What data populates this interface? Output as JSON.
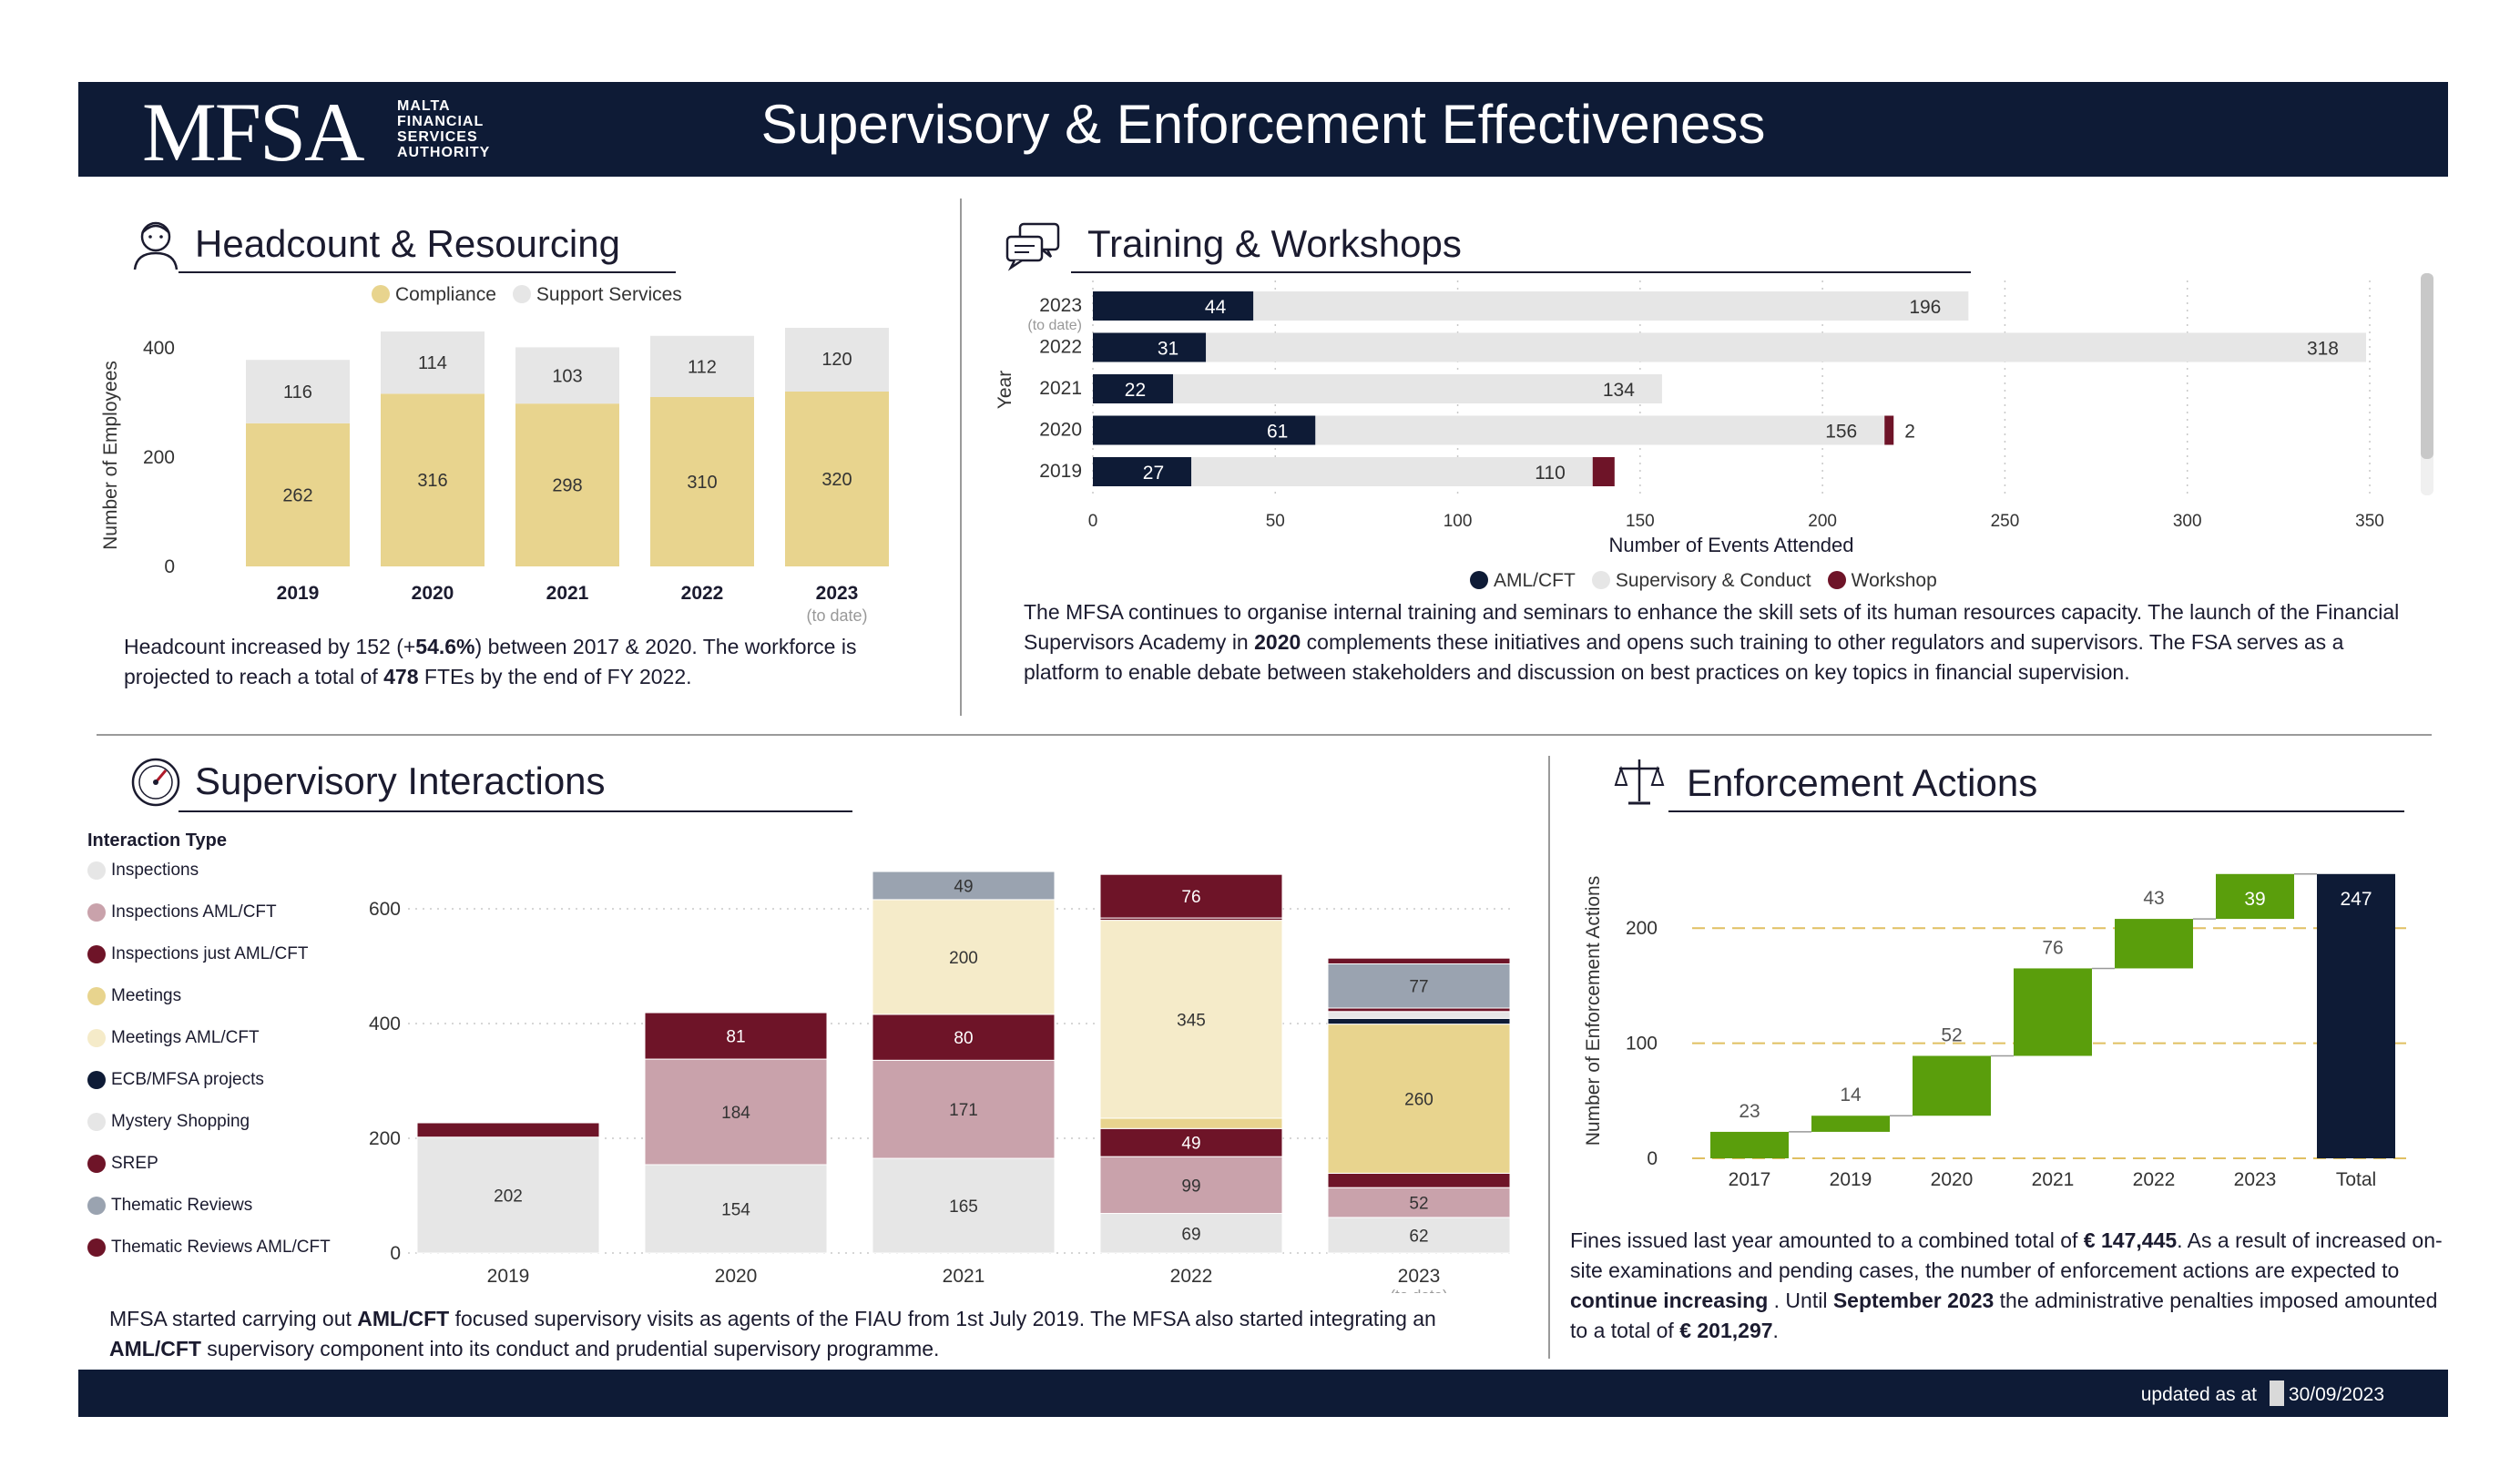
{
  "header": {
    "logo": "MFSA",
    "logo_sub": [
      "MALTA",
      "FINANCIAL",
      "SERVICES",
      "AUTHORITY"
    ],
    "title": "Supervisory & Enforcement Effectiveness"
  },
  "footer": {
    "updated_label": "updated as at",
    "updated_date": "30/09/2023"
  },
  "colors": {
    "navy": "#0e1b36",
    "compliance": "#e8d48e",
    "support": "#e6e6e6",
    "maroon": "#6e1428",
    "pink": "#c9a2ab",
    "cream": "#f5ebc9",
    "grey": "#9aa3b0",
    "green": "#5a9e0c",
    "gold_dash": "#e0c062"
  },
  "headcount": {
    "title": "Headcount & Resourcing",
    "icon": "person-icon",
    "legend": [
      "Compliance",
      "Support Services"
    ],
    "paragraph": [
      "Headcount increased by 152 (+",
      "54.6%",
      ") between 2017 & 2020. The workforce is projected to reach a total of ",
      "478",
      " FTEs by the end of FY 2022."
    ]
  },
  "training": {
    "title": "Training & Workshops",
    "icon": "chat-icon",
    "legend": [
      "AML/CFT",
      "Supervisory & Conduct",
      "Workshop"
    ],
    "paragraph": [
      "The MFSA continues to organise internal training and seminars to enhance the skill sets of its human resources capacity. The launch of the Financial Supervisors Academy in ",
      "2020",
      " complements these initiatives and opens such training to other regulators and supervisors. The FSA serves as a platform to enable debate between stakeholders and discussion on best practices on key topics in financial supervision."
    ]
  },
  "interactions": {
    "title": "Supervisory Interactions",
    "icon": "gauge-icon",
    "legend_title": "Interaction Type",
    "legend": [
      {
        "label": "Inspections",
        "color": "#e6e6e6"
      },
      {
        "label": "Inspections  AML/CFT",
        "color": "#c9a2ab"
      },
      {
        "label": "Inspections just AML/CFT",
        "color": "#6e1428"
      },
      {
        "label": "Meetings",
        "color": "#e8d48e"
      },
      {
        "label": "Meetings  AML/CFT",
        "color": "#f5ebc9"
      },
      {
        "label": "ECB/MFSA projects",
        "color": "#0e1b36"
      },
      {
        "label": "Mystery Shopping",
        "color": "#e6e6e6"
      },
      {
        "label": "SREP",
        "color": "#6e1428"
      },
      {
        "label": "Thematic Reviews",
        "color": "#9aa3b0"
      },
      {
        "label": "Thematic Reviews   AML/CFT",
        "color": "#6e1428"
      }
    ],
    "paragraph": [
      "MFSA started carrying out ",
      "AML/CFT",
      " focused supervisory visits as agents of the FIAU from 1st July 2019. The MFSA also started integrating an ",
      "AML/CFT",
      " supervisory component into its conduct and prudential supervisory programme."
    ]
  },
  "enforcement": {
    "title": "Enforcement Actions",
    "icon": "scales-icon",
    "paragraph": [
      "Fines issued last year amounted to a combined total of ",
      "€ 147,445",
      ". As a result of increased on-site examinations and pending cases, the number of enforcement actions are expected to ",
      "continue increasing",
      " . Until ",
      "September 2023",
      " the administrative penalties imposed amounted to a total of ",
      "€ 201,297",
      "."
    ]
  },
  "chart_data": [
    {
      "id": "headcount",
      "type": "bar",
      "stacked": true,
      "categories": [
        "2019",
        "2020",
        "2021",
        "2022",
        "2023"
      ],
      "category_notes": [
        "",
        "",
        "",
        "",
        "(to date)"
      ],
      "series": [
        {
          "name": "Compliance",
          "values": [
            262,
            316,
            298,
            310,
            320
          ]
        },
        {
          "name": "Support Services",
          "values": [
            116,
            114,
            103,
            112,
            120
          ]
        }
      ],
      "ylabel": "Number of Employees",
      "ylim": [
        0,
        450
      ],
      "yticks": [
        0,
        200,
        400
      ],
      "legend": "top"
    },
    {
      "id": "training",
      "type": "bar",
      "orientation": "horizontal",
      "stacked": true,
      "categories": [
        "2023",
        "2022",
        "2021",
        "2020",
        "2019"
      ],
      "category_notes": [
        "(to date)",
        "",
        "",
        "",
        ""
      ],
      "series": [
        {
          "name": "AML/CFT",
          "values": [
            44,
            31,
            22,
            61,
            27
          ]
        },
        {
          "name": "Supervisory & Conduct",
          "values": [
            196,
            318,
            134,
            156,
            110
          ]
        },
        {
          "name": "Workshop",
          "values": [
            0,
            0,
            0,
            2,
            6
          ]
        }
      ],
      "value_labels": {
        "Workshop": [
          "",
          "",
          "",
          "2",
          ""
        ]
      },
      "xlabel": "Number of Events Attended",
      "ylabel": "Year",
      "xlim": [
        0,
        350
      ],
      "xticks": [
        0,
        50,
        100,
        150,
        200,
        250,
        300,
        350
      ],
      "legend": "bottom"
    },
    {
      "id": "interactions",
      "type": "bar",
      "stacked": true,
      "categories": [
        "2019",
        "2020",
        "2021",
        "2022",
        "2023"
      ],
      "category_notes": [
        "",
        "",
        "",
        "",
        "(to date)"
      ],
      "series": [
        {
          "name": "Inspections",
          "values": [
            202,
            154,
            165,
            69,
            62
          ]
        },
        {
          "name": "Inspections  AML/CFT",
          "values": [
            0,
            184,
            171,
            99,
            52
          ]
        },
        {
          "name": "Inspections just AML/CFT",
          "values": [
            25,
            81,
            80,
            49,
            25
          ]
        },
        {
          "name": "Meetings",
          "values": [
            0,
            0,
            0,
            18,
            260
          ]
        },
        {
          "name": "Meetings  AML/CFT",
          "values": [
            0,
            0,
            200,
            345,
            0
          ]
        },
        {
          "name": "ECB/MFSA projects",
          "values": [
            0,
            0,
            0,
            0,
            10
          ]
        },
        {
          "name": "Mystery Shopping",
          "values": [
            0,
            0,
            0,
            0,
            12
          ]
        },
        {
          "name": "SREP",
          "values": [
            0,
            0,
            0,
            4,
            6
          ]
        },
        {
          "name": "Thematic Reviews",
          "values": [
            0,
            0,
            49,
            0,
            77
          ]
        },
        {
          "name": "Thematic Reviews   AML/CFT",
          "values": [
            0,
            0,
            0,
            76,
            10
          ]
        }
      ],
      "value_labels": {
        "Inspections": [
          "202",
          "154",
          "165",
          "69",
          "62"
        ],
        "Inspections  AML/CFT": [
          "",
          "184",
          "171",
          "99",
          "52"
        ],
        "Inspections just AML/CFT": [
          "",
          "81",
          "80",
          "49",
          ""
        ],
        "Meetings": [
          "",
          "",
          "",
          "",
          "260"
        ],
        "Meetings  AML/CFT": [
          "",
          "",
          "200",
          "345",
          ""
        ],
        "Thematic Reviews": [
          "",
          "",
          "49",
          "",
          "77"
        ],
        "Thematic Reviews   AML/CFT": [
          "",
          "",
          "",
          "76",
          ""
        ]
      },
      "ylim": [
        0,
        680
      ],
      "yticks": [
        0,
        200,
        400,
        600
      ],
      "legend": "left"
    },
    {
      "id": "enforcement",
      "type": "bar",
      "subtype": "waterfall",
      "categories": [
        "2017",
        "2019",
        "2020",
        "2021",
        "2022",
        "2023",
        "Total"
      ],
      "values": [
        23,
        14,
        52,
        76,
        43,
        39,
        247
      ],
      "ylabel": "Number of Enforcement Actions",
      "ylim": [
        0,
        250
      ],
      "yticks": [
        0,
        100,
        200
      ]
    }
  ]
}
